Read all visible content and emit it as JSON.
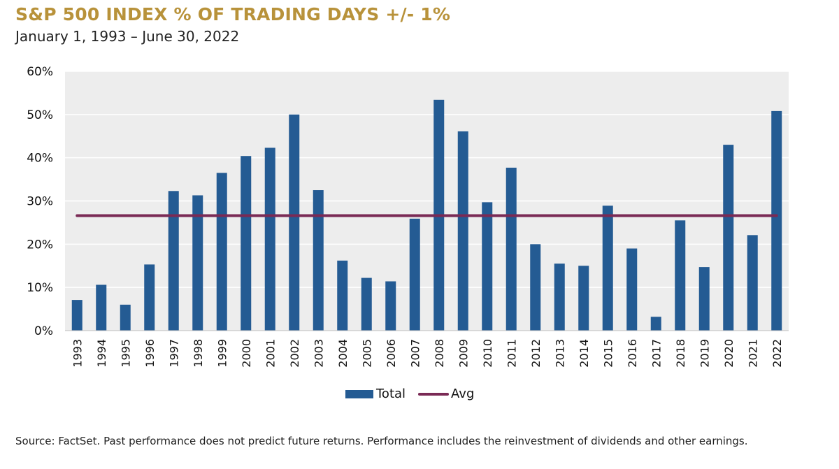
{
  "title": "S&P 500 INDEX % OF TRADING DAYS +/- 1%",
  "subtitle": "January 1, 1993 – June 30, 2022",
  "source": "Source: FactSet. Past performance does not predict future returns. Performance includes the reinvestment of dividends and other earnings.",
  "colors": {
    "title": "#b8923a",
    "bar": "#245b93",
    "avg_line": "#7a2a55",
    "plot_bg": "#ededed",
    "grid": "#ffffff"
  },
  "chart_data": {
    "type": "bar",
    "title": "S&P 500 INDEX % OF TRADING DAYS +/- 1%",
    "xlabel": "",
    "ylabel": "",
    "ylim": [
      0,
      60
    ],
    "y_ticks": [
      0,
      10,
      20,
      30,
      40,
      50,
      60
    ],
    "y_tick_labels": [
      "0%",
      "10%",
      "20%",
      "30%",
      "40%",
      "50%",
      "60%"
    ],
    "grid": true,
    "legend_position": "bottom",
    "categories": [
      "1993",
      "1994",
      "1995",
      "1996",
      "1997",
      "1998",
      "1999",
      "2000",
      "2001",
      "2002",
      "2003",
      "2004",
      "2005",
      "2006",
      "2007",
      "2008",
      "2009",
      "2010",
      "2011",
      "2012",
      "2013",
      "2014",
      "2015",
      "2016",
      "2017",
      "2018",
      "2019",
      "2020",
      "2021",
      "2022"
    ],
    "series": [
      {
        "name": "Total",
        "type": "bar",
        "values": [
          7.1,
          10.6,
          6.0,
          15.3,
          32.3,
          31.3,
          36.5,
          40.4,
          42.3,
          50.0,
          32.5,
          16.2,
          12.2,
          11.4,
          25.9,
          53.4,
          46.1,
          29.7,
          37.7,
          20.0,
          15.5,
          15.0,
          28.9,
          19.0,
          3.2,
          25.5,
          14.7,
          43.0,
          22.1,
          50.8
        ]
      },
      {
        "name": "Avg",
        "type": "line",
        "values": [
          26.6,
          26.6,
          26.6,
          26.6,
          26.6,
          26.6,
          26.6,
          26.6,
          26.6,
          26.6,
          26.6,
          26.6,
          26.6,
          26.6,
          26.6,
          26.6,
          26.6,
          26.6,
          26.6,
          26.6,
          26.6,
          26.6,
          26.6,
          26.6,
          26.6,
          26.6,
          26.6,
          26.6,
          26.6,
          26.6
        ]
      }
    ]
  }
}
